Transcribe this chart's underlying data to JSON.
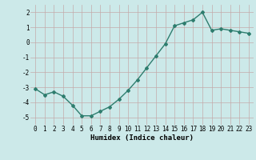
{
  "x": [
    0,
    1,
    2,
    3,
    4,
    5,
    6,
    7,
    8,
    9,
    10,
    11,
    12,
    13,
    14,
    15,
    16,
    17,
    18,
    19,
    20,
    21,
    22,
    23
  ],
  "y": [
    -3.1,
    -3.5,
    -3.3,
    -3.6,
    -4.2,
    -4.9,
    -4.9,
    -4.6,
    -4.3,
    -3.8,
    -3.2,
    -2.5,
    -1.7,
    -0.9,
    -0.1,
    1.1,
    1.3,
    1.5,
    2.0,
    0.8,
    0.9,
    0.8,
    0.7,
    0.6
  ],
  "xlabel": "Humidex (Indice chaleur)",
  "ylim": [
    -5.5,
    2.5
  ],
  "xlim": [
    -0.5,
    23.5
  ],
  "yticks": [
    -5,
    -4,
    -3,
    -2,
    -1,
    0,
    1,
    2
  ],
  "xticks": [
    0,
    1,
    2,
    3,
    4,
    5,
    6,
    7,
    8,
    9,
    10,
    11,
    12,
    13,
    14,
    15,
    16,
    17,
    18,
    19,
    20,
    21,
    22,
    23
  ],
  "line_color": "#2e7d6e",
  "marker": "D",
  "marker_size": 2.0,
  "bg_color": "#cce9e9",
  "grid_color": "#c4aaaa",
  "line_width": 1.0,
  "tick_fontsize": 5.5,
  "xlabel_fontsize": 6.5
}
